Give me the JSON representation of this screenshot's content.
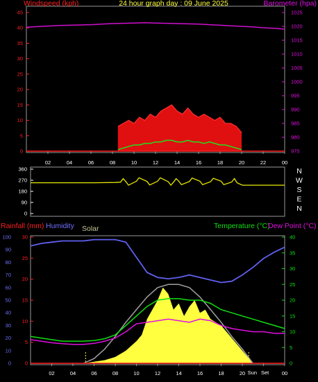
{
  "chart_data": [
    {
      "type": "line",
      "title": "24 hour graph day : 09 June 2025",
      "left_axis": {
        "label": "Windspeed (kph)",
        "ylim": [
          0,
          45
        ],
        "ticks": [
          "0",
          "5",
          "10",
          "15",
          "20",
          "25",
          "30",
          "35",
          "40",
          "45"
        ]
      },
      "right_axis": {
        "label": "Barometer (hpa)",
        "ylim": [
          975,
          1025
        ],
        "ticks": [
          "975",
          "980",
          "985",
          "990",
          "995",
          "1000",
          "1005",
          "1010",
          "1015",
          "1020",
          "1025"
        ]
      },
      "x_ticks": [
        "02",
        "04",
        "06",
        "08",
        "10",
        "12",
        "14",
        "16",
        "18",
        "20",
        "22",
        "00"
      ],
      "x_range_hours": [
        0,
        24
      ],
      "series": [
        {
          "name": "Barometer (hpa)",
          "color": "#d010d0",
          "axis": "right",
          "x": [
            0,
            1,
            2,
            3,
            4,
            5,
            6,
            7,
            8,
            9,
            10,
            11,
            12,
            13,
            14,
            15,
            16,
            17,
            18,
            19,
            20,
            21,
            22,
            23,
            24
          ],
          "y": [
            1019.7,
            1019.9,
            1020.1,
            1020.3,
            1020.4,
            1020.5,
            1020.6,
            1020.8,
            1021.0,
            1021.1,
            1021.2,
            1021.3,
            1021.2,
            1021.1,
            1021.0,
            1020.9,
            1020.8,
            1020.6,
            1020.4,
            1020.2,
            1020.0,
            1019.8,
            1019.5,
            1019.3,
            1019.0
          ]
        },
        {
          "name": "Wind gust",
          "color": "#ff2020",
          "axis": "left",
          "x": [
            8.5,
            9,
            9.5,
            10,
            10.5,
            11,
            11.5,
            12,
            12.5,
            13,
            13.5,
            14,
            14.5,
            15,
            15.5,
            16,
            16.5,
            17,
            17.5,
            18,
            18.5,
            19,
            19.5,
            20
          ],
          "y": [
            8,
            9,
            10,
            9,
            11,
            10,
            12,
            11,
            13,
            14,
            15,
            13,
            12,
            14,
            12,
            11,
            12,
            11,
            10,
            11,
            9,
            9,
            8,
            6
          ]
        },
        {
          "name": "Wind average",
          "color": "#20e020",
          "axis": "left",
          "x": [
            8.5,
            9,
            9.5,
            10,
            10.5,
            11,
            11.5,
            12,
            12.5,
            13,
            13.5,
            14,
            14.5,
            15,
            15.5,
            16,
            16.5,
            17,
            17.5,
            18,
            18.5,
            19,
            19.5,
            20
          ],
          "y": [
            0.5,
            1,
            1.5,
            2,
            2,
            2.5,
            2.5,
            3,
            3,
            3.5,
            3.5,
            3,
            3,
            3.5,
            3,
            3,
            2.5,
            3,
            2.5,
            2,
            2,
            1.5,
            1,
            0.5
          ]
        }
      ]
    },
    {
      "type": "line",
      "left_axis": {
        "ylim": [
          0,
          360
        ],
        "ticks": [
          "0",
          "90",
          "180",
          "270",
          "360"
        ]
      },
      "right_axis": {
        "labels": [
          "N",
          "W",
          "S",
          "E",
          "N"
        ]
      },
      "x_range_hours": [
        0,
        24
      ],
      "series": [
        {
          "name": "Wind direction",
          "color": "#e8e800",
          "x": [
            0,
            2,
            4,
            6,
            8,
            8.5,
            9,
            10,
            11,
            12,
            13,
            13.5,
            14,
            15,
            16,
            17,
            18,
            19,
            19.5,
            20,
            21,
            22,
            23,
            24
          ],
          "y": [
            250,
            250,
            250,
            250,
            252,
            255,
            258,
            262,
            260,
            262,
            258,
            255,
            262,
            260,
            262,
            258,
            262,
            256,
            250,
            230,
            230,
            230,
            230,
            230
          ]
        }
      ]
    },
    {
      "type": "line",
      "left_axis_humidity": {
        "label": "Humidity",
        "ylim": [
          0,
          100
        ],
        "ticks": [
          "0",
          "10",
          "20",
          "30",
          "40",
          "50",
          "60",
          "70",
          "80",
          "90",
          "100"
        ]
      },
      "left_axis_rain": {
        "label": "Rainfall (mm)",
        "ylim": [
          0,
          30
        ],
        "ticks": [
          "0",
          "5",
          "10",
          "15",
          "20",
          "25",
          "30"
        ]
      },
      "solar_label": "Solar",
      "right_axis": {
        "ylim": [
          0,
          40
        ],
        "ticks": [
          "0",
          "5",
          "10",
          "15",
          "20",
          "25",
          "30",
          "35",
          "40"
        ]
      },
      "right_labels": [
        "Temperature (°C)",
        "Dew Point (°C)"
      ],
      "x_ticks": [
        "02",
        "04",
        "06",
        "08",
        "10",
        "12",
        "14",
        "16",
        "18",
        "20",
        "00"
      ],
      "sun_markers": [
        "Sun",
        "Set"
      ],
      "x_range_hours": [
        0,
        24
      ],
      "series": [
        {
          "name": "Humidity",
          "color": "#6060f0",
          "axis": "humidity",
          "x": [
            0,
            1,
            2,
            3,
            4,
            5,
            6,
            7,
            8,
            9,
            10,
            11,
            12,
            13,
            14,
            15,
            16,
            17,
            18,
            19,
            20,
            21,
            22,
            23,
            24
          ],
          "y": [
            93,
            95,
            96,
            97,
            97,
            97,
            98,
            98,
            98,
            96,
            84,
            72,
            68,
            67,
            68,
            70,
            68,
            66,
            64,
            65,
            70,
            76,
            83,
            88,
            92
          ]
        },
        {
          "name": "Temperature",
          "color": "#10e010",
          "axis": "right",
          "x": [
            0,
            1,
            2,
            3,
            4,
            5,
            6,
            7,
            8,
            9,
            10,
            11,
            12,
            13,
            14,
            15,
            16,
            17,
            18,
            19,
            20,
            21,
            22,
            23,
            24
          ],
          "y": [
            8.5,
            8,
            7.5,
            7,
            7,
            7,
            7.2,
            7.8,
            9,
            12,
            15,
            18,
            20,
            20.5,
            20.5,
            20,
            20,
            19,
            17,
            16,
            15,
            14,
            13,
            12,
            11
          ]
        },
        {
          "name": "Dew Point",
          "color": "#e010e0",
          "axis": "right",
          "x": [
            0,
            1,
            2,
            3,
            4,
            5,
            6,
            7,
            8,
            9,
            10,
            11,
            12,
            13,
            14,
            15,
            16,
            17,
            18,
            19,
            20,
            21,
            22,
            23,
            24
          ],
          "y": [
            7.5,
            7,
            6.5,
            6.2,
            6,
            6,
            6.3,
            7,
            8,
            10,
            12.5,
            13,
            13.5,
            14,
            13.5,
            13,
            14,
            13.5,
            12,
            11,
            10.5,
            10,
            10,
            9.5,
            9.5
          ]
        },
        {
          "name": "Solar",
          "color": "#ffff40",
          "axis": "right",
          "x": [
            5,
            6,
            7,
            8,
            9,
            10,
            10.5,
            11,
            11.5,
            12,
            12.5,
            13,
            13.5,
            14,
            14.5,
            15,
            15.5,
            16,
            16.5,
            17,
            17.5,
            18,
            18.5,
            19,
            20,
            21
          ],
          "y": [
            0,
            0.5,
            1,
            2,
            4,
            7,
            9,
            14,
            17,
            20,
            24,
            22,
            17,
            19,
            15,
            18,
            20,
            16,
            17,
            14,
            13,
            12,
            10,
            8,
            4,
            0
          ]
        },
        {
          "name": "Solar max",
          "color": "#a0a0a0",
          "axis": "right",
          "x": [
            5,
            6,
            7,
            8,
            9,
            10,
            11,
            12,
            13,
            14,
            15,
            16,
            17,
            18,
            19,
            20,
            21
          ],
          "y": [
            0,
            1.5,
            4.5,
            8.5,
            13,
            17,
            21,
            24,
            25,
            25,
            24,
            21,
            17,
            13,
            8.5,
            4.5,
            0
          ]
        },
        {
          "name": "Rainfall",
          "color": "#ff2020",
          "axis": "rain",
          "x": [
            0,
            24
          ],
          "y": [
            0,
            0
          ]
        }
      ]
    }
  ]
}
